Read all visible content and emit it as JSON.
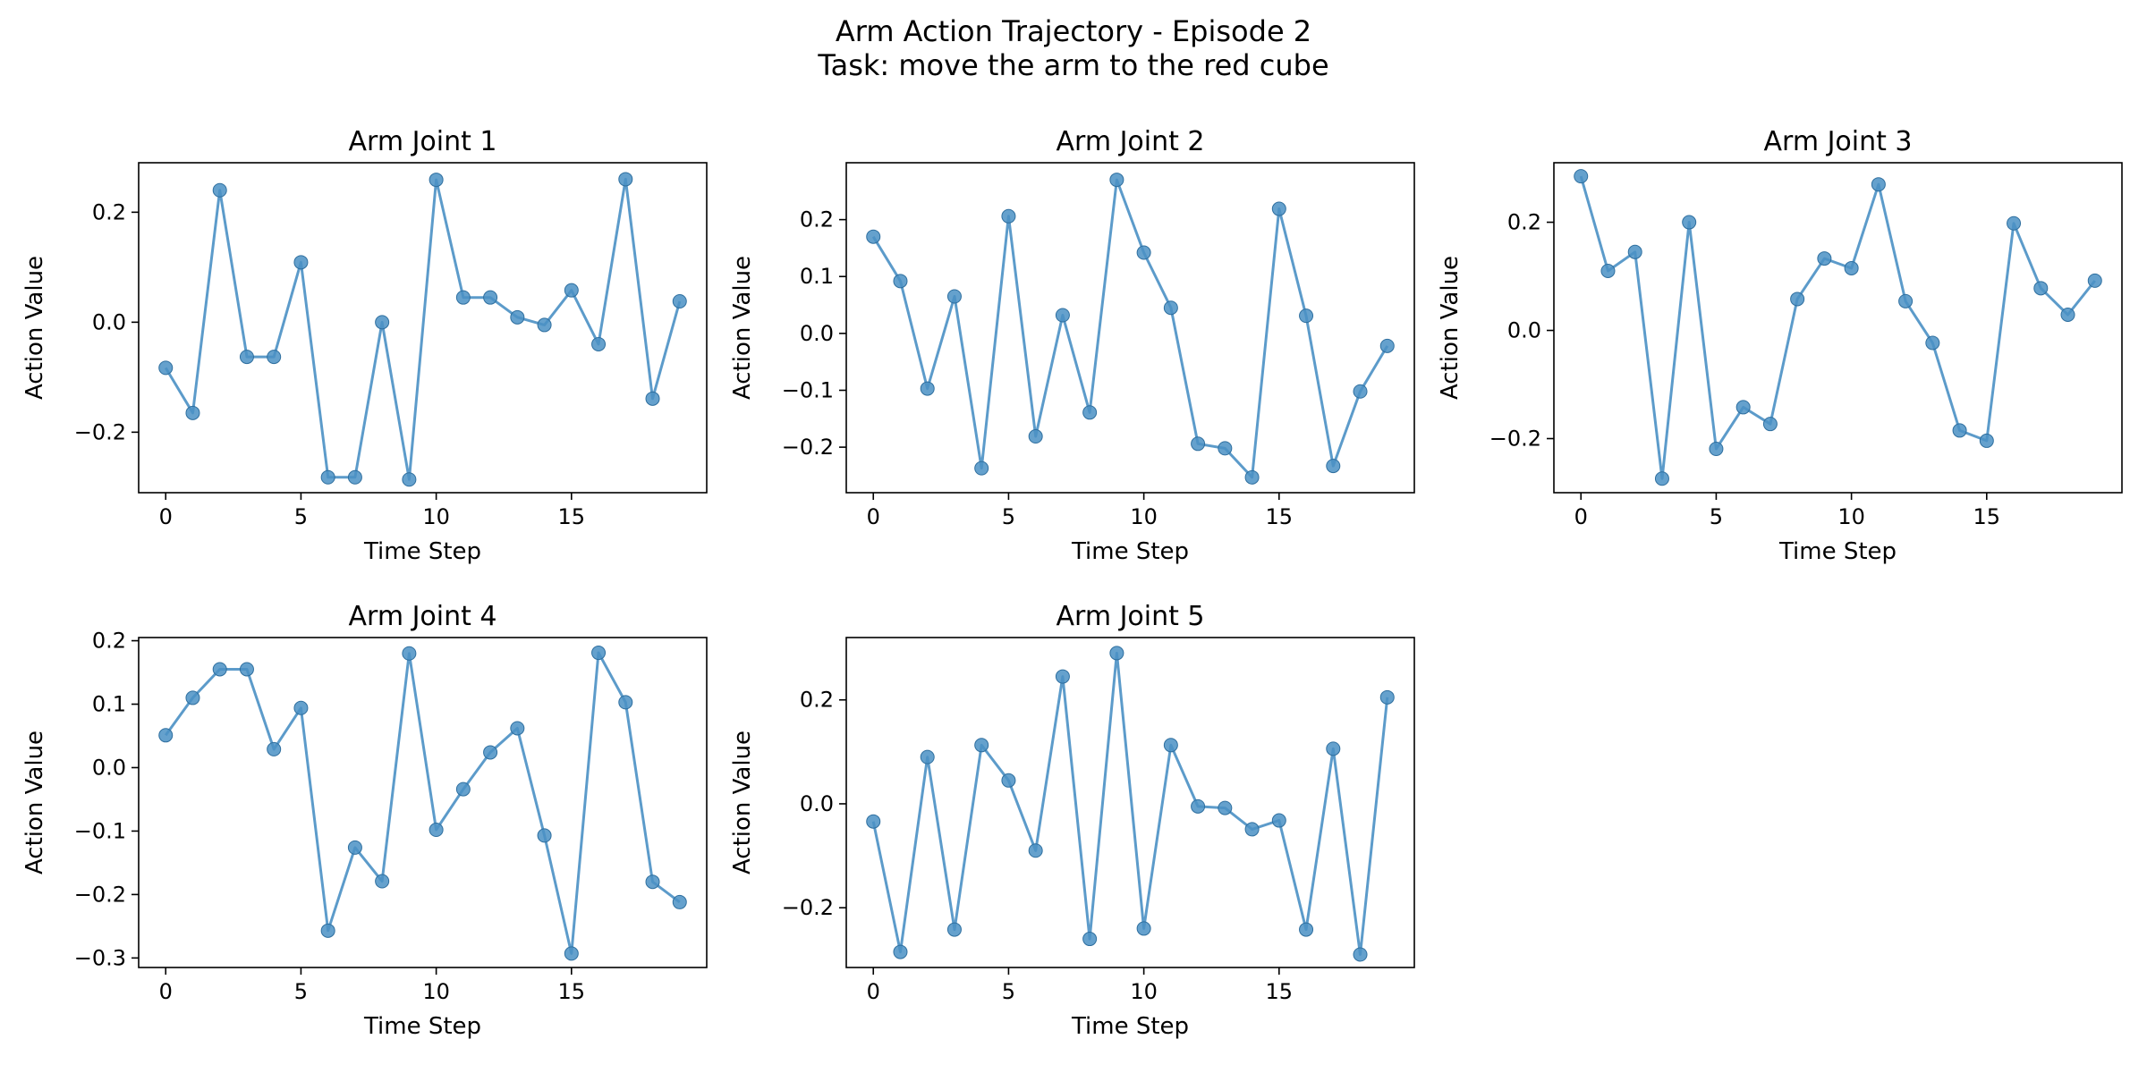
{
  "figure": {
    "title_line1": "Arm Action Trajectory - Episode 2",
    "title_line2": "Task: move the arm to the red cube"
  },
  "colors": {
    "series": "#4a90c4",
    "axes": "#000000",
    "background": "#ffffff"
  },
  "chart_data": [
    {
      "type": "line",
      "title": "Arm Joint 1",
      "xlabel": "Time Step",
      "ylabel": "Action Value",
      "xlim": [
        -1,
        20
      ],
      "ylim": [
        -0.31,
        0.29
      ],
      "xticks": [
        0,
        5,
        10,
        15
      ],
      "yticks": [
        -0.2,
        0.0,
        0.2
      ],
      "ytick_labels": [
        "−0.2",
        "0.0",
        "0.2"
      ],
      "markers": true,
      "grid": false,
      "x": [
        0,
        1,
        2,
        3,
        4,
        5,
        6,
        7,
        8,
        9,
        10,
        11,
        12,
        13,
        14,
        15,
        16,
        17,
        18,
        19
      ],
      "values": [
        -0.083,
        -0.165,
        0.24,
        -0.063,
        -0.063,
        0.109,
        -0.282,
        -0.282,
        0.0,
        -0.286,
        0.259,
        0.045,
        0.045,
        0.009,
        -0.005,
        0.058,
        -0.04,
        0.26,
        -0.139,
        0.038
      ]
    },
    {
      "type": "line",
      "title": "Arm Joint 2",
      "xlabel": "Time Step",
      "ylabel": "Action Value",
      "xlim": [
        -1,
        20
      ],
      "ylim": [
        -0.28,
        0.3
      ],
      "xticks": [
        0,
        5,
        10,
        15
      ],
      "yticks": [
        -0.2,
        -0.1,
        0.0,
        0.1,
        0.2
      ],
      "ytick_labels": [
        "−0.2",
        "−0.1",
        "0.0",
        "0.1",
        "0.2"
      ],
      "markers": true,
      "grid": false,
      "x": [
        0,
        1,
        2,
        3,
        4,
        5,
        6,
        7,
        8,
        9,
        10,
        11,
        12,
        13,
        14,
        15,
        16,
        17,
        18,
        19
      ],
      "values": [
        0.17,
        0.092,
        -0.097,
        0.065,
        -0.237,
        0.206,
        -0.181,
        0.032,
        -0.139,
        0.27,
        0.142,
        0.045,
        -0.194,
        -0.202,
        -0.253,
        0.219,
        0.031,
        -0.233,
        -0.102,
        -0.022
      ]
    },
    {
      "type": "line",
      "title": "Arm Joint 3",
      "xlabel": "Time Step",
      "ylabel": "Action Value",
      "xlim": [
        -1,
        20
      ],
      "ylim": [
        -0.3,
        0.31
      ],
      "xticks": [
        0,
        5,
        10,
        15
      ],
      "yticks": [
        -0.2,
        0.0,
        0.2
      ],
      "ytick_labels": [
        "−0.2",
        "0.0",
        "0.2"
      ],
      "markers": true,
      "grid": false,
      "x": [
        0,
        1,
        2,
        3,
        4,
        5,
        6,
        7,
        8,
        9,
        10,
        11,
        12,
        13,
        14,
        15,
        16,
        17,
        18,
        19
      ],
      "values": [
        0.285,
        0.11,
        0.145,
        -0.274,
        0.2,
        -0.219,
        -0.142,
        -0.173,
        0.058,
        0.133,
        0.115,
        0.27,
        0.054,
        -0.023,
        -0.185,
        -0.204,
        0.198,
        0.078,
        0.029,
        0.092
      ]
    },
    {
      "type": "line",
      "title": "Arm Joint 4",
      "xlabel": "Time Step",
      "ylabel": "Action Value",
      "xlim": [
        -1,
        20
      ],
      "ylim": [
        -0.315,
        0.205
      ],
      "xticks": [
        0,
        5,
        10,
        15
      ],
      "yticks": [
        -0.3,
        -0.2,
        -0.1,
        0.0,
        0.1,
        0.2
      ],
      "ytick_labels": [
        "−0.3",
        "−0.2",
        "−0.1",
        "0.0",
        "0.1",
        "0.2"
      ],
      "markers": true,
      "grid": false,
      "x": [
        0,
        1,
        2,
        3,
        4,
        5,
        6,
        7,
        8,
        9,
        10,
        11,
        12,
        13,
        14,
        15,
        16,
        17,
        18,
        19
      ],
      "values": [
        0.051,
        0.11,
        0.155,
        0.155,
        0.029,
        0.094,
        -0.257,
        -0.126,
        -0.179,
        0.18,
        -0.098,
        -0.034,
        0.024,
        0.062,
        -0.107,
        -0.293,
        0.181,
        0.103,
        -0.18,
        -0.212
      ]
    },
    {
      "type": "line",
      "title": "Arm Joint 5",
      "xlabel": "Time Step",
      "ylabel": "Action Value",
      "xlim": [
        -1,
        20
      ],
      "ylim": [
        -0.315,
        0.32
      ],
      "xticks": [
        0,
        5,
        10,
        15
      ],
      "yticks": [
        -0.2,
        0.0,
        0.2
      ],
      "ytick_labels": [
        "−0.2",
        "0.0",
        "0.2"
      ],
      "markers": true,
      "grid": false,
      "x": [
        0,
        1,
        2,
        3,
        4,
        5,
        6,
        7,
        8,
        9,
        10,
        11,
        12,
        13,
        14,
        15,
        16,
        17,
        18,
        19
      ],
      "values": [
        -0.034,
        -0.285,
        0.09,
        -0.242,
        0.113,
        0.045,
        -0.09,
        0.245,
        -0.26,
        0.29,
        -0.24,
        0.113,
        -0.005,
        -0.008,
        -0.049,
        -0.032,
        -0.242,
        0.106,
        -0.29,
        0.205
      ]
    }
  ]
}
